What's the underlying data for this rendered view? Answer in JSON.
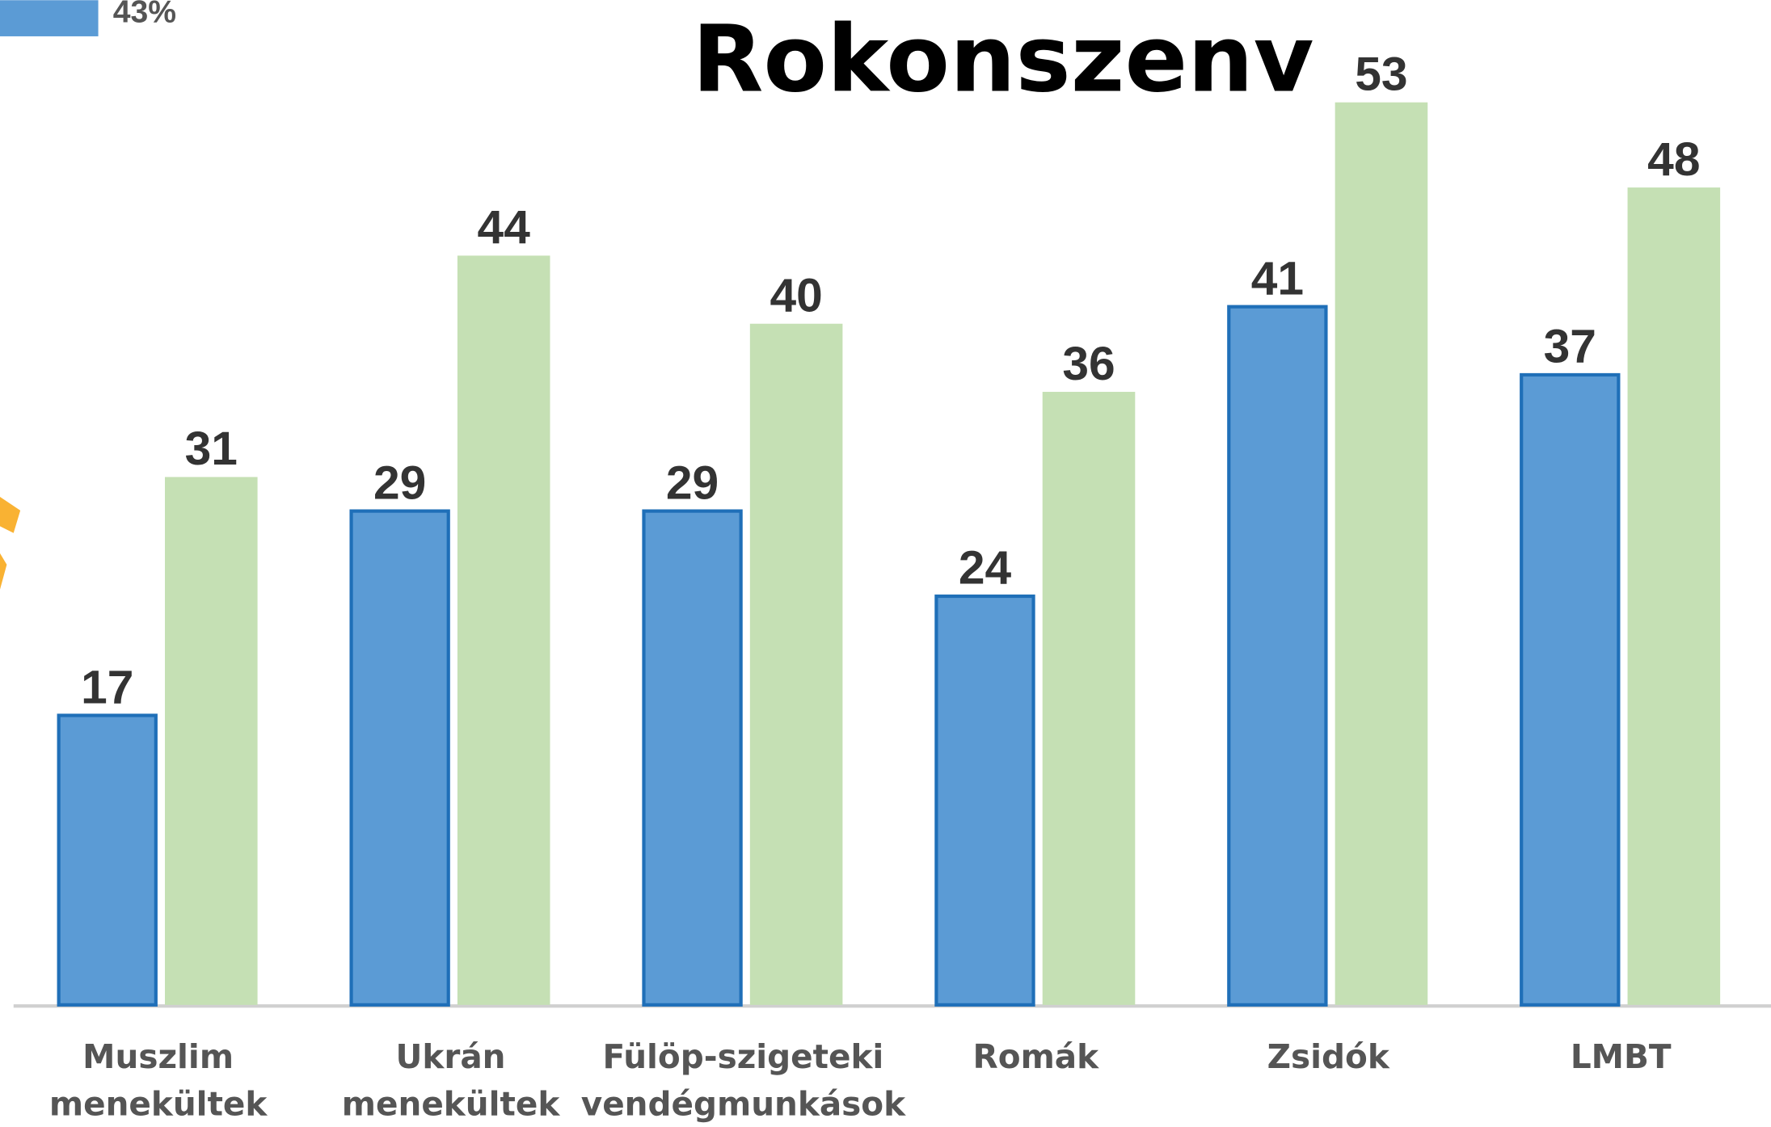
{
  "chart_data": {
    "type": "bar",
    "title": "Rokonszenv",
    "annotations": [
      "43%"
    ],
    "categories": [
      "Muszlim menekültek",
      "Ukrán menekültek",
      "Fülöp-szigeteki vendégmunkások",
      "Romák",
      "Zsidók",
      "LMBT"
    ],
    "series": [
      {
        "color": "#5b9bd5",
        "values": [
          17,
          29,
          29,
          24,
          41,
          37
        ]
      },
      {
        "color": "#c5e0b4",
        "values": [
          31,
          44,
          40,
          36,
          53,
          48
        ]
      }
    ],
    "ylim": [
      0,
      59
    ]
  }
}
